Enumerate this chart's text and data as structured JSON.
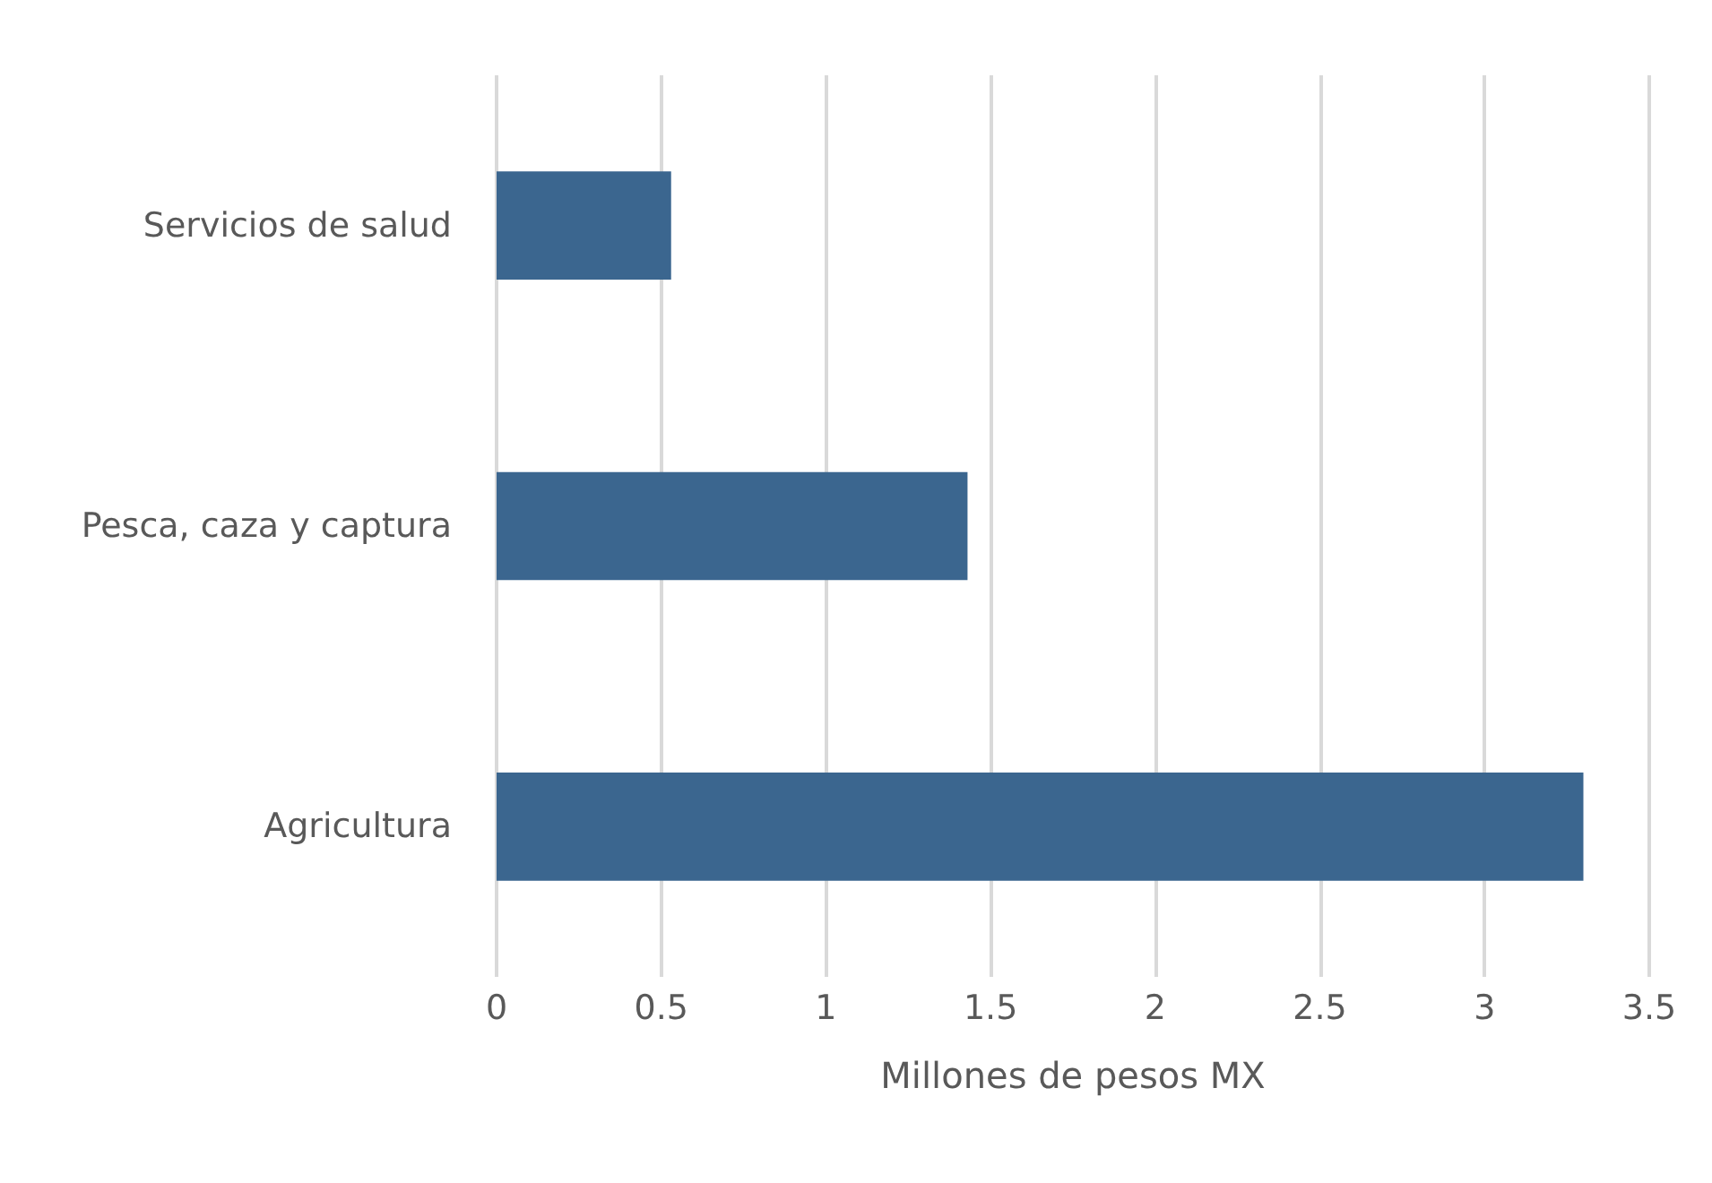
{
  "chart_data": {
    "type": "bar",
    "orientation": "horizontal",
    "xlabel": "Millones de pesos MX",
    "categories": [
      "Servicios de salud",
      "Pesca, caza y captura",
      "Agricultura"
    ],
    "values": [
      0.53,
      1.43,
      3.3
    ],
    "color": "#3b668f",
    "xlim": [
      0,
      3.5
    ],
    "xticks": [
      0,
      0.5,
      1,
      1.5,
      2,
      2.5,
      3,
      3.5
    ],
    "grid": "x"
  }
}
